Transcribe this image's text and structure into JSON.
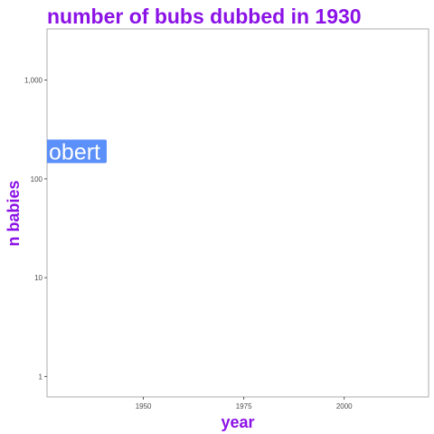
{
  "chart_data": {
    "type": "line",
    "title": "number of bubs dubbed in 1930",
    "xlabel": "year",
    "ylabel": "n babies",
    "x_scale": "linear",
    "y_scale": "log10",
    "xlim": [
      1926,
      2021
    ],
    "ylim": [
      0.62,
      3300
    ],
    "x_ticks": [
      1950,
      1975,
      2000
    ],
    "x_tick_labels": [
      "1950",
      "1975",
      "2000"
    ],
    "y_ticks": [
      1,
      10,
      100,
      1000
    ],
    "y_tick_labels": [
      "1",
      "10",
      "100",
      "1,000"
    ],
    "grid": false,
    "series": [
      {
        "label_text": "obert",
        "x": 1930,
        "y": 190,
        "color": "#5b8ff9"
      }
    ]
  },
  "colors": {
    "title": "#8b12e6",
    "axis_title": "#8b12e6",
    "label_fill": "#5b8ff9",
    "panel_border": "#9a9a9a",
    "tick_text": "#4d4d4d"
  }
}
